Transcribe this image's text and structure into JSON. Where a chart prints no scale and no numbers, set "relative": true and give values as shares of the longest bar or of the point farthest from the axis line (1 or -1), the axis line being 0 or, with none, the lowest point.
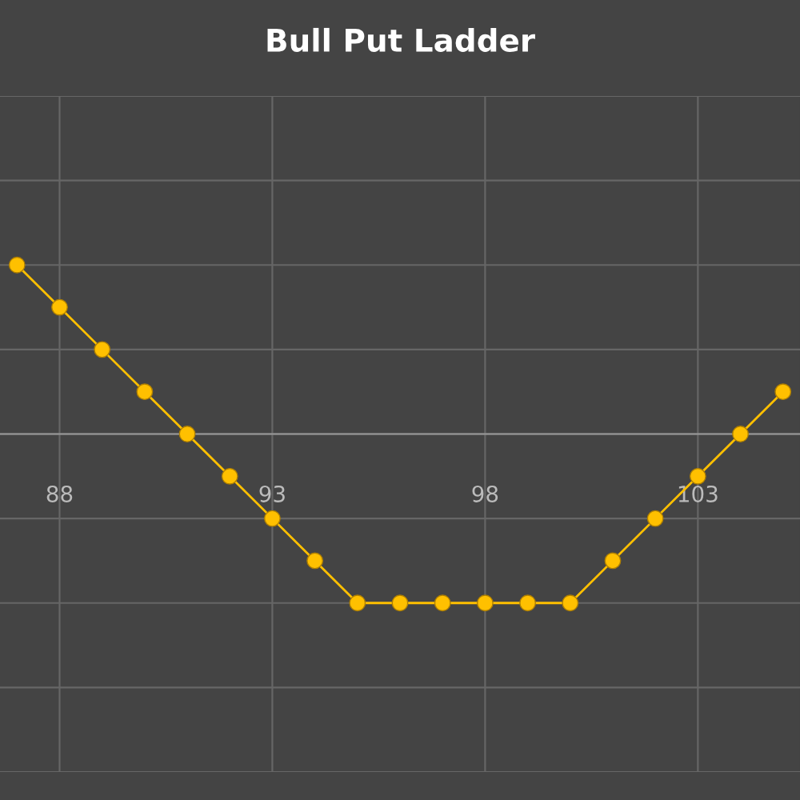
{
  "chart_data": {
    "type": "line",
    "title": "Bull Put Ladder",
    "relative": true,
    "x": [
      87,
      88,
      89,
      90,
      91,
      92,
      93,
      94,
      95,
      96,
      97,
      98,
      99,
      100,
      101,
      102,
      103,
      104,
      105
    ],
    "series": [
      {
        "color": "#ffc000",
        "values": [
          1,
          0.75,
          0.5,
          0.25,
          0,
          -0.25,
          -0.5,
          -0.75,
          -1,
          -1,
          -1,
          -1,
          -1,
          -1,
          -0.75,
          -0.5,
          -0.25,
          0,
          0.25
        ]
      }
    ],
    "xlim": [
      86.6,
      105.4
    ],
    "xticks": [
      88,
      93,
      98,
      103
    ],
    "grid": true,
    "marker": "circle",
    "line_style": "solid",
    "tick_labels": "x"
  }
}
